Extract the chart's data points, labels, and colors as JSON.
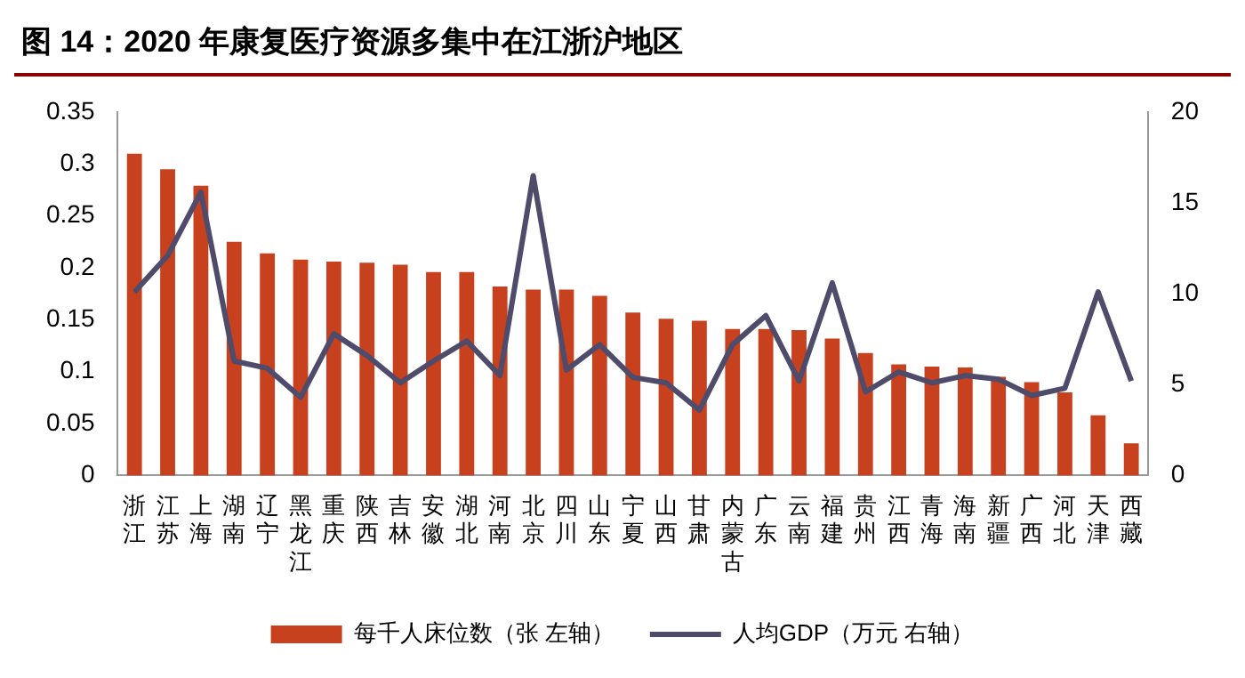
{
  "chart_data": {
    "type": "bar",
    "title": "图 14：2020 年康复医疗资源多集中在江浙沪地区",
    "categories": [
      "浙江",
      "江苏",
      "上海",
      "湖南",
      "辽宁",
      "黑龙江",
      "重庆",
      "陕西",
      "吉林",
      "安徽",
      "湖北",
      "河南",
      "北京",
      "四川",
      "山东",
      "宁夏",
      "山西",
      "甘肃",
      "内蒙古",
      "广东",
      "云南",
      "福建",
      "贵州",
      "江西",
      "青海",
      "海南",
      "新疆",
      "广西",
      "河北",
      "天津",
      "西藏"
    ],
    "series": [
      {
        "name": "每千人床位数（张 左轴）",
        "color": "#c8411e",
        "values": [
          0.31,
          0.295,
          0.279,
          0.225,
          0.214,
          0.208,
          0.206,
          0.205,
          0.203,
          0.196,
          0.196,
          0.182,
          0.179,
          0.179,
          0.173,
          0.157,
          0.151,
          0.149,
          0.141,
          0.141,
          0.14,
          0.132,
          0.118,
          0.107,
          0.105,
          0.104,
          0.095,
          0.09,
          0.08,
          0.058,
          0.031
        ]
      },
      {
        "name": "人均GDP（万元 右轴）",
        "type": "line",
        "axis": "y2",
        "color": "#4f4b6b",
        "values": [
          10.1,
          12.1,
          15.6,
          6.3,
          5.9,
          4.3,
          7.8,
          6.6,
          5.1,
          6.3,
          7.4,
          5.5,
          16.5,
          5.8,
          7.2,
          5.4,
          5.1,
          3.6,
          7.2,
          8.8,
          5.2,
          10.6,
          4.6,
          5.7,
          5.1,
          5.5,
          5.3,
          4.4,
          4.8,
          10.1,
          5.2
        ]
      }
    ],
    "ylim": [
      0,
      0.35
    ],
    "yticks": [
      0,
      0.05,
      0.1,
      0.15,
      0.2,
      0.25,
      0.3,
      0.35
    ],
    "y2lim": [
      0,
      20
    ],
    "y2ticks": [
      0,
      5,
      10,
      15,
      20
    ],
    "grid": false,
    "legend": "bottom",
    "marker": "none"
  }
}
